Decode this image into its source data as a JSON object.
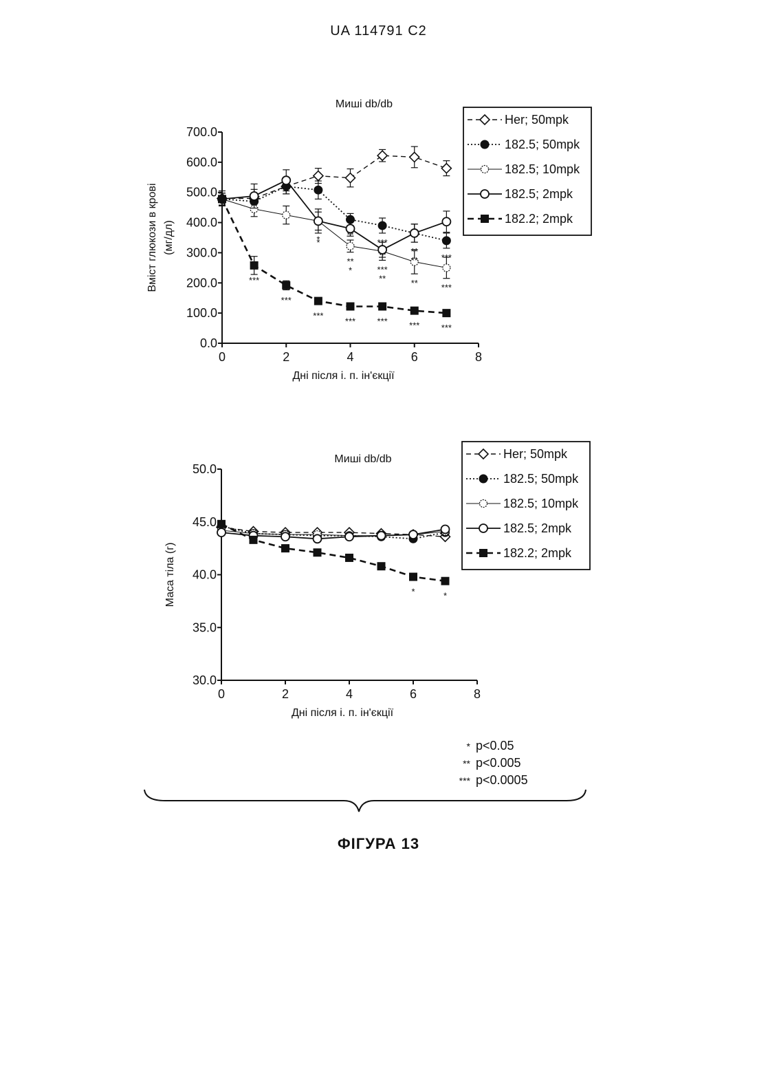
{
  "header": {
    "patent_id": "UA   114791   C2"
  },
  "figure_caption": "ФІГУРА 13",
  "significance_legend": [
    {
      "stars": "*",
      "label": "p<0.05"
    },
    {
      "stars": "**",
      "label": "p<0.005"
    },
    {
      "stars": "***",
      "label": "p<0.0005"
    }
  ],
  "chart_data": [
    {
      "type": "line",
      "title": "Миші db/db",
      "xlabel": "Дні після і. п. ін'єкції",
      "ylabel": [
        "Вміст глюкози в крові",
        "(мг/дл)"
      ],
      "xlim": [
        0,
        8
      ],
      "ylim": [
        0,
        700
      ],
      "xticks": [
        0,
        2,
        4,
        6,
        8
      ],
      "yticks": [
        0,
        100,
        200,
        300,
        400,
        500,
        600,
        700
      ],
      "ytick_labels": [
        "0.0",
        "100.0",
        "200.0",
        "300.0",
        "400.0",
        "500.0",
        "600.0",
        "700.0"
      ],
      "x": [
        0,
        1,
        2,
        3,
        4,
        5,
        6,
        7
      ],
      "legend_position": "top-right",
      "series": [
        {
          "name": "Her; 50mpk",
          "marker": "diamond-open",
          "dash": "dashed",
          "values": [
            480,
            480,
            520,
            555,
            548,
            622,
            617,
            580
          ],
          "errors": [
            25,
            30,
            25,
            25,
            30,
            20,
            35,
            25
          ],
          "sig": [
            "",
            "",
            "",
            "*",
            "",
            "",
            "",
            ""
          ]
        },
        {
          "name": "182.5; 50mpk",
          "marker": "circle-filled",
          "dash": "dotted",
          "values": [
            478,
            470,
            520,
            508,
            410,
            390,
            365,
            340
          ],
          "errors": [
            20,
            25,
            25,
            30,
            20,
            25,
            30,
            25
          ],
          "sig": [
            "",
            "",
            "",
            "",
            "**",
            "***",
            "**",
            "***"
          ]
        },
        {
          "name": "182.5; 10mpk",
          "marker": "star-open",
          "dash": "thin",
          "values": [
            478,
            445,
            425,
            405,
            322,
            305,
            270,
            250
          ],
          "errors": [
            20,
            25,
            30,
            30,
            20,
            30,
            40,
            35
          ],
          "sig": [
            "",
            "",
            "",
            "*",
            "**\n*",
            "***\n**",
            "**",
            "***"
          ]
        },
        {
          "name": "182.5; 2mpk",
          "marker": "circle-open",
          "dash": "solid",
          "values": [
            478,
            488,
            540,
            405,
            380,
            310,
            365,
            403
          ],
          "errors": [
            20,
            40,
            35,
            40,
            25,
            25,
            30,
            35
          ],
          "sig": [
            "",
            "",
            "",
            "*",
            "",
            "",
            "**\n**",
            "*"
          ]
        },
        {
          "name": "182.2; 2mpk",
          "marker": "square-filled",
          "dash": "dashed-bold",
          "values": [
            478,
            258,
            192,
            140,
            122,
            122,
            108,
            100
          ],
          "errors": [
            20,
            30,
            15,
            10,
            8,
            10,
            8,
            8
          ],
          "sig": [
            "",
            "***",
            "***",
            "***",
            "***",
            "***",
            "***",
            "***"
          ]
        }
      ]
    },
    {
      "type": "line",
      "title": "Миші db/db",
      "xlabel": "Дні після і. п. ін'єкції",
      "ylabel": [
        "Маса тіла (г)"
      ],
      "xlim": [
        0,
        8
      ],
      "ylim": [
        30,
        50
      ],
      "xticks": [
        0,
        2,
        4,
        6,
        8
      ],
      "yticks": [
        30,
        35,
        40,
        45,
        50
      ],
      "ytick_labels": [
        "30.0",
        "35.0",
        "40.0",
        "45.0",
        "50.0"
      ],
      "x": [
        0,
        1,
        2,
        3,
        4,
        5,
        6,
        7
      ],
      "legend_position": "top-right",
      "series": [
        {
          "name": "Her; 50mpk",
          "marker": "diamond-open",
          "dash": "dashed",
          "values": [
            44.5,
            44.1,
            44.0,
            44.0,
            44.0,
            43.9,
            43.8,
            43.6
          ]
        },
        {
          "name": "182.5; 50mpk",
          "marker": "circle-filled",
          "dash": "dotted",
          "values": [
            44.6,
            43.9,
            43.8,
            43.7,
            43.7,
            43.6,
            43.4,
            44.0
          ]
        },
        {
          "name": "182.5; 10mpk",
          "marker": "star-open",
          "dash": "thin",
          "values": [
            44.2,
            43.9,
            43.8,
            43.8,
            43.7,
            43.7,
            43.8,
            44.1
          ]
        },
        {
          "name": "182.5; 2mpk",
          "marker": "circle-open",
          "dash": "solid",
          "values": [
            44.0,
            43.7,
            43.6,
            43.4,
            43.6,
            43.7,
            43.8,
            44.3
          ]
        },
        {
          "name": "182.2; 2mpk",
          "marker": "square-filled",
          "dash": "dashed-bold",
          "values": [
            44.8,
            43.3,
            42.5,
            42.1,
            41.6,
            40.8,
            39.8,
            39.4
          ],
          "sig": [
            "",
            "",
            "",
            "",
            "",
            "",
            "*",
            "*"
          ]
        }
      ]
    }
  ]
}
